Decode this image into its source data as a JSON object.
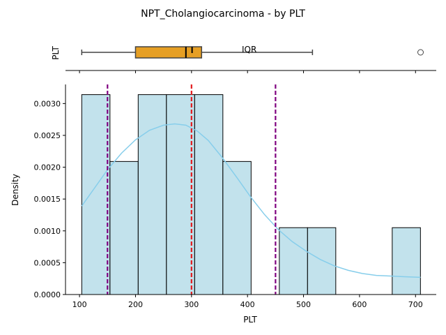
{
  "chart_data": [
    {
      "type": "box",
      "title": "NPT_Cholangiocarcinoma - by PLT",
      "ylabel": "PLT",
      "box": {
        "whisker_low": 104,
        "q1": 200,
        "median": 290,
        "mean": 301,
        "q3": 318,
        "whisker_high": 516,
        "outliers": [
          709
        ]
      },
      "annotation": "IQR",
      "colors": {
        "box": "#e69f24",
        "edge": "#444444"
      }
    },
    {
      "type": "bar",
      "xlabel": "PLT",
      "ylabel": "Density",
      "xlim": [
        75,
        737
      ],
      "ylim": [
        0,
        0.0033
      ],
      "xticks": [
        "100",
        "200",
        "300",
        "400",
        "500",
        "600",
        "700"
      ],
      "yticks": [
        "0.0000",
        "0.0005",
        "0.0010",
        "0.0015",
        "0.0020",
        "0.0025",
        "0.0030"
      ],
      "bins": [
        {
          "x0": 104,
          "x1": 154.4,
          "density": 0.00314
        },
        {
          "x0": 154.4,
          "x1": 204.8,
          "density": 0.00209
        },
        {
          "x0": 204.8,
          "x1": 255.2,
          "density": 0.00314
        },
        {
          "x0": 255.2,
          "x1": 305.6,
          "density": 0.00314
        },
        {
          "x0": 305.6,
          "x1": 356.0,
          "density": 0.00314
        },
        {
          "x0": 356.0,
          "x1": 406.4,
          "density": 0.00209
        },
        {
          "x0": 406.4,
          "x1": 456.8,
          "density": 0.0
        },
        {
          "x0": 456.8,
          "x1": 507.2,
          "density": 0.00105
        },
        {
          "x0": 507.2,
          "x1": 557.6,
          "density": 0.00105
        },
        {
          "x0": 557.6,
          "x1": 608.0,
          "density": 0.0
        },
        {
          "x0": 608.0,
          "x1": 658.4,
          "density": 0.0
        },
        {
          "x0": 658.4,
          "x1": 708.8,
          "density": 0.00105
        }
      ],
      "kde": {
        "x": [
          104,
          125,
          150,
          175,
          200,
          225,
          250,
          270,
          290,
          310,
          330,
          355,
          380,
          405,
          430,
          455,
          480,
          505,
          530,
          555,
          580,
          605,
          630,
          655,
          680,
          709
        ],
        "y": [
          0.00139,
          0.00165,
          0.00196,
          0.00222,
          0.00243,
          0.00258,
          0.00266,
          0.00268,
          0.00266,
          0.00257,
          0.00242,
          0.00215,
          0.00185,
          0.00154,
          0.00126,
          0.00102,
          0.00083,
          0.00068,
          0.00055,
          0.00045,
          0.00038,
          0.00033,
          0.0003,
          0.00029,
          0.00028,
          0.00027
        ]
      },
      "vlines": [
        {
          "x": 150,
          "color": "#800080",
          "style": "dashed"
        },
        {
          "x": 300,
          "color": "#e31a1c",
          "style": "dashed"
        },
        {
          "x": 450,
          "color": "#800080",
          "style": "dashed"
        }
      ],
      "colors": {
        "bar_fill": "#add8e6",
        "bar_edge": "#000000",
        "kde": "#87ceeb"
      },
      "grid": false
    }
  ]
}
